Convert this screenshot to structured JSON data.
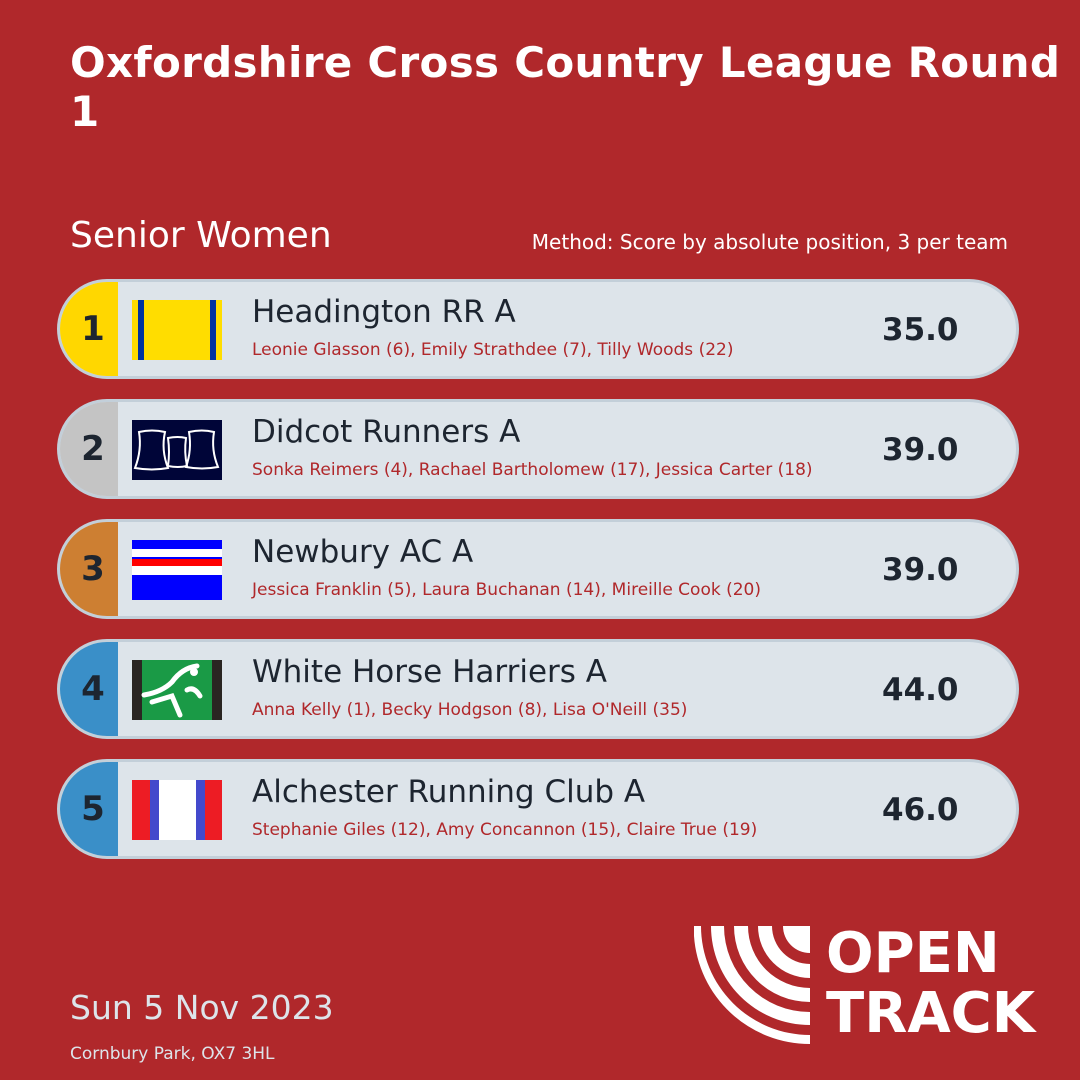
{
  "header": {
    "title": "Oxfordshire Cross Country League Round 1"
  },
  "category": "Senior Women",
  "method": "Method: Score by absolute position, 3 per team",
  "colors": {
    "background": "#b0282b",
    "row": "#dde4ea",
    "gold": "#ffd700",
    "silver": "#c4c4c4",
    "bronze": "#cd7f32",
    "other": "#3a8fc8"
  },
  "results": [
    {
      "rank": "1",
      "team": "Headington RR A",
      "runners": "Leonie Glasson (6), Emily Strathdee (7), Tilly Woods (22)",
      "score": "35.0",
      "rank_color": "#ffd700",
      "logo": "headington-flag"
    },
    {
      "rank": "2",
      "team": "Didcot Runners A",
      "runners": "Sonka Reimers (4), Rachael Bartholomew (17), Jessica Carter (18)",
      "score": "39.0",
      "rank_color": "#c4c4c4",
      "logo": "didcot-cooling-towers"
    },
    {
      "rank": "3",
      "team": "Newbury AC A",
      "runners": "Jessica Franklin (5), Laura Buchanan (14), Mireille Cook (20)",
      "score": "39.0",
      "rank_color": "#cd7f32",
      "logo": "newbury-stripes"
    },
    {
      "rank": "4",
      "team": "White Horse Harriers A",
      "runners": "Anna Kelly (1), Becky Hodgson (8), Lisa O'Neill (35)",
      "score": "44.0",
      "rank_color": "#3a8fc8",
      "logo": "white-horse"
    },
    {
      "rank": "5",
      "team": "Alchester Running Club A",
      "runners": "Stephanie Giles (12), Amy Concannon (15), Claire True (19)",
      "score": "46.0",
      "rank_color": "#3a8fc8",
      "logo": "alchester-stripes"
    }
  ],
  "footer": {
    "date": "Sun 5 Nov 2023",
    "venue": "Cornbury Park, OX7 3HL",
    "brand": "OPEN TRACK"
  }
}
